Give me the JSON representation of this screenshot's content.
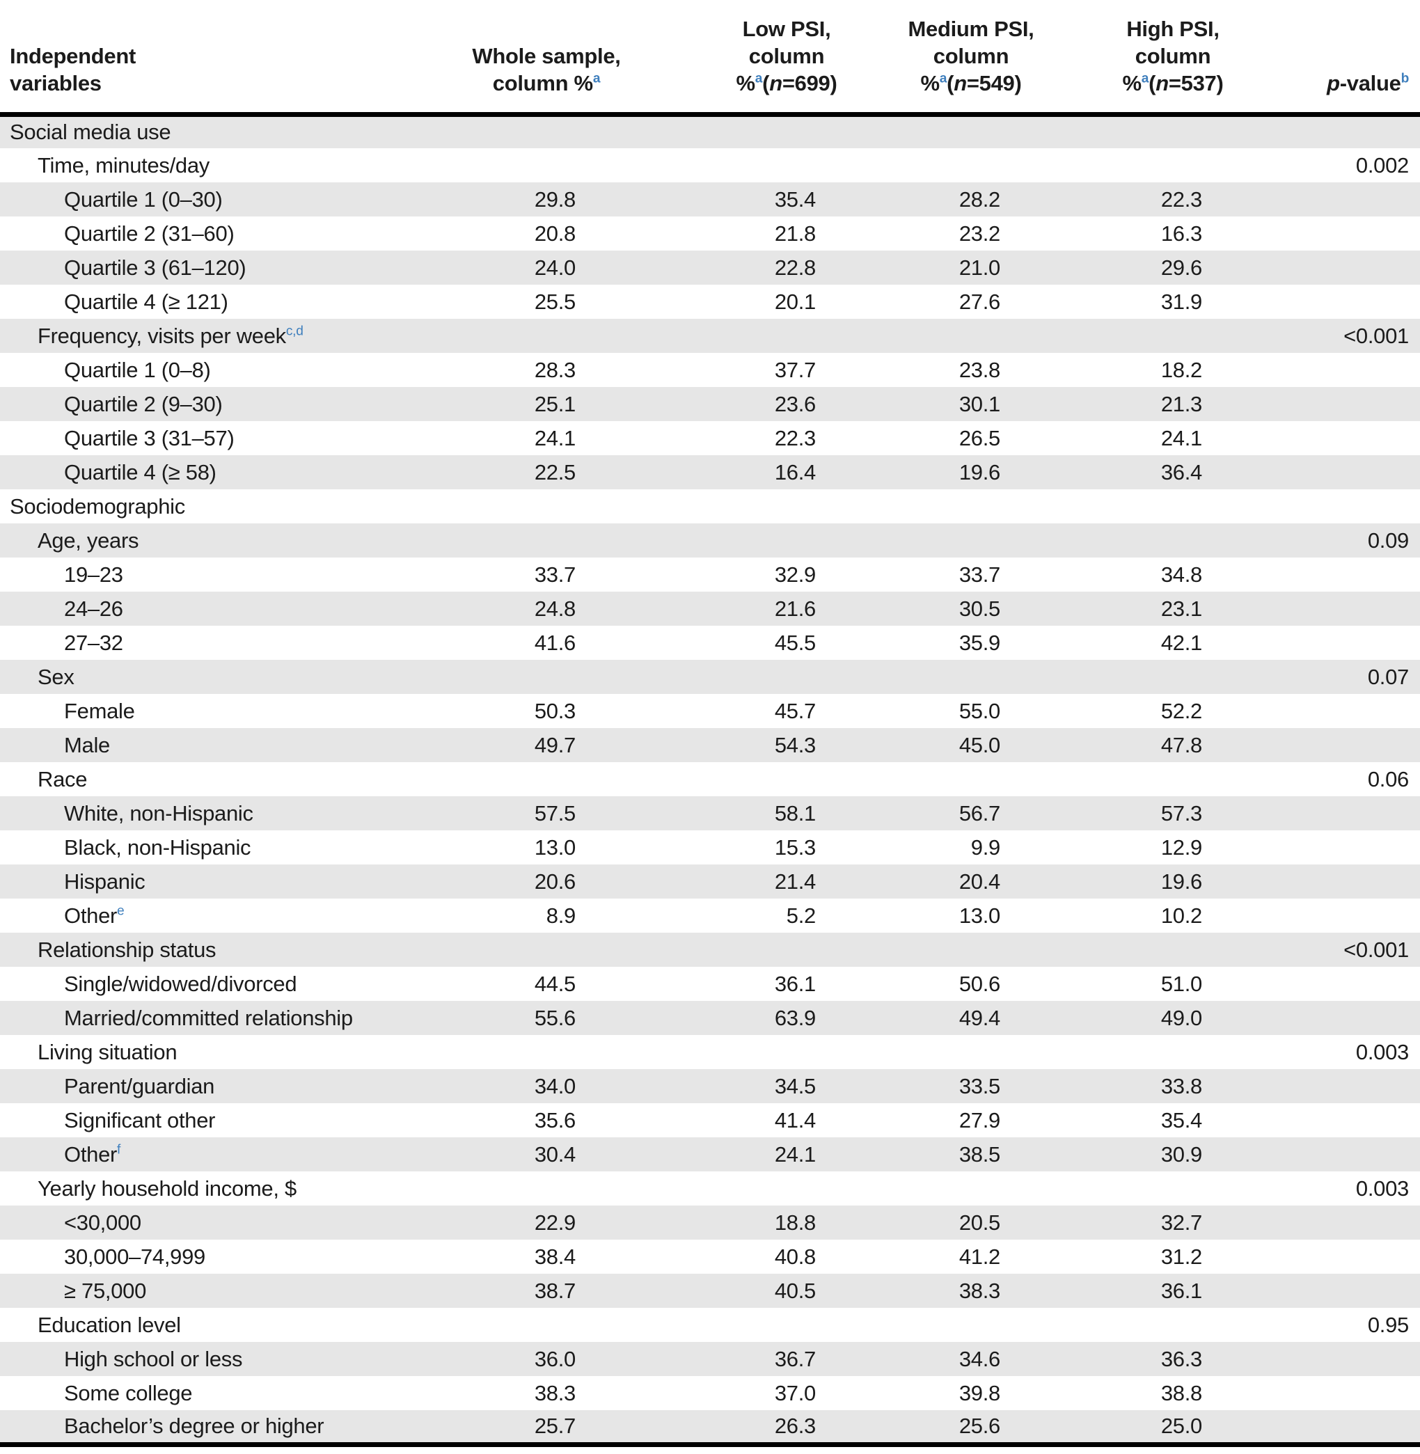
{
  "colors": {
    "superscript_blue": "#3f7fbd",
    "stripe_gray": "#e6e6e6",
    "rule_black": "#000000",
    "text": "#1b1b1b"
  },
  "chart_data": {
    "type": "table",
    "title": "Social media use and sociodemographic characteristics by PSI group (column percentages)"
  },
  "table": {
    "columns": [
      {
        "key": "label",
        "align": "left",
        "header_lines": [
          [
            {
              "t": "Independent"
            }
          ],
          [
            {
              "t": "variables"
            }
          ]
        ]
      },
      {
        "key": "whole",
        "align": "center",
        "header_lines": [
          [
            {
              "t": "Whole sample,"
            }
          ],
          [
            {
              "t": "column %"
            },
            {
              "t": "a",
              "sup": true
            }
          ]
        ]
      },
      {
        "key": "low",
        "align": "center",
        "header_lines": [
          [
            {
              "t": "Low PSI,"
            }
          ],
          [
            {
              "t": "column"
            }
          ],
          [
            {
              "t": "%"
            },
            {
              "t": "a",
              "sup": true
            },
            {
              "t": "("
            },
            {
              "t": "n",
              "i": true
            },
            {
              "t": "=699)"
            }
          ]
        ]
      },
      {
        "key": "medium",
        "align": "center",
        "header_lines": [
          [
            {
              "t": "Medium PSI,"
            }
          ],
          [
            {
              "t": "column"
            }
          ],
          [
            {
              "t": "%"
            },
            {
              "t": "a",
              "sup": true
            },
            {
              "t": "("
            },
            {
              "t": "n",
              "i": true
            },
            {
              "t": "=549)"
            }
          ]
        ]
      },
      {
        "key": "high",
        "align": "center",
        "header_lines": [
          [
            {
              "t": "High PSI,"
            }
          ],
          [
            {
              "t": "column"
            }
          ],
          [
            {
              "t": "%"
            },
            {
              "t": "a",
              "sup": true
            },
            {
              "t": "("
            },
            {
              "t": "n",
              "i": true
            },
            {
              "t": "=537)"
            }
          ]
        ]
      },
      {
        "key": "p",
        "align": "right",
        "header_lines": [
          [
            {
              "t": "p",
              "i": true
            },
            {
              "t": "-value"
            },
            {
              "t": "b",
              "sup": true
            }
          ]
        ]
      }
    ],
    "rows": [
      {
        "label": "Social media use",
        "sup": "",
        "indent": 0,
        "values": [
          "",
          "",
          "",
          ""
        ],
        "p": ""
      },
      {
        "label": "Time, minutes/day",
        "sup": "",
        "indent": 1,
        "values": [
          "",
          "",
          "",
          ""
        ],
        "p": "0.002"
      },
      {
        "label": "Quartile 1 (0–30)",
        "sup": "",
        "indent": 2,
        "values": [
          "29.8",
          "35.4",
          "28.2",
          "22.3"
        ],
        "p": ""
      },
      {
        "label": "Quartile 2 (31–60)",
        "sup": "",
        "indent": 2,
        "values": [
          "20.8",
          "21.8",
          "23.2",
          "16.3"
        ],
        "p": ""
      },
      {
        "label": "Quartile 3 (61–120)",
        "sup": "",
        "indent": 2,
        "values": [
          "24.0",
          "22.8",
          "21.0",
          "29.6"
        ],
        "p": ""
      },
      {
        "label": "Quartile 4 (≥ 121)",
        "sup": "",
        "indent": 2,
        "values": [
          "25.5",
          "20.1",
          "27.6",
          "31.9"
        ],
        "p": ""
      },
      {
        "label": "Frequency, visits per week",
        "sup": "c,d",
        "indent": 1,
        "values": [
          "",
          "",
          "",
          ""
        ],
        "p": "<0.001"
      },
      {
        "label": "Quartile 1 (0–8)",
        "sup": "",
        "indent": 2,
        "values": [
          "28.3",
          "37.7",
          "23.8",
          "18.2"
        ],
        "p": ""
      },
      {
        "label": "Quartile 2 (9–30)",
        "sup": "",
        "indent": 2,
        "values": [
          "25.1",
          "23.6",
          "30.1",
          "21.3"
        ],
        "p": ""
      },
      {
        "label": "Quartile 3 (31–57)",
        "sup": "",
        "indent": 2,
        "values": [
          "24.1",
          "22.3",
          "26.5",
          "24.1"
        ],
        "p": ""
      },
      {
        "label": "Quartile 4 (≥ 58)",
        "sup": "",
        "indent": 2,
        "values": [
          "22.5",
          "16.4",
          "19.6",
          "36.4"
        ],
        "p": ""
      },
      {
        "label": "Sociodemographic",
        "sup": "",
        "indent": 0,
        "values": [
          "",
          "",
          "",
          ""
        ],
        "p": ""
      },
      {
        "label": "Age, years",
        "sup": "",
        "indent": 1,
        "values": [
          "",
          "",
          "",
          ""
        ],
        "p": "0.09"
      },
      {
        "label": "19–23",
        "sup": "",
        "indent": 2,
        "values": [
          "33.7",
          "32.9",
          "33.7",
          "34.8"
        ],
        "p": ""
      },
      {
        "label": "24–26",
        "sup": "",
        "indent": 2,
        "values": [
          "24.8",
          "21.6",
          "30.5",
          "23.1"
        ],
        "p": ""
      },
      {
        "label": "27–32",
        "sup": "",
        "indent": 2,
        "values": [
          "41.6",
          "45.5",
          "35.9",
          "42.1"
        ],
        "p": ""
      },
      {
        "label": "Sex",
        "sup": "",
        "indent": 1,
        "values": [
          "",
          "",
          "",
          ""
        ],
        "p": "0.07"
      },
      {
        "label": "Female",
        "sup": "",
        "indent": 2,
        "values": [
          "50.3",
          "45.7",
          "55.0",
          "52.2"
        ],
        "p": ""
      },
      {
        "label": "Male",
        "sup": "",
        "indent": 2,
        "values": [
          "49.7",
          "54.3",
          "45.0",
          "47.8"
        ],
        "p": ""
      },
      {
        "label": "Race",
        "sup": "",
        "indent": 1,
        "values": [
          "",
          "",
          "",
          ""
        ],
        "p": "0.06"
      },
      {
        "label": "White, non-Hispanic",
        "sup": "",
        "indent": 2,
        "values": [
          "57.5",
          "58.1",
          "56.7",
          "57.3"
        ],
        "p": ""
      },
      {
        "label": "Black, non-Hispanic",
        "sup": "",
        "indent": 2,
        "values": [
          "13.0",
          "15.3",
          "9.9",
          "12.9"
        ],
        "p": ""
      },
      {
        "label": "Hispanic",
        "sup": "",
        "indent": 2,
        "values": [
          "20.6",
          "21.4",
          "20.4",
          "19.6"
        ],
        "p": ""
      },
      {
        "label": "Other",
        "sup": "e",
        "indent": 2,
        "values": [
          "8.9",
          "5.2",
          "13.0",
          "10.2"
        ],
        "p": ""
      },
      {
        "label": "Relationship status",
        "sup": "",
        "indent": 1,
        "values": [
          "",
          "",
          "",
          ""
        ],
        "p": "<0.001"
      },
      {
        "label": "Single/widowed/divorced",
        "sup": "",
        "indent": 2,
        "values": [
          "44.5",
          "36.1",
          "50.6",
          "51.0"
        ],
        "p": ""
      },
      {
        "label": "Married/committed relationship",
        "sup": "",
        "indent": 2,
        "values": [
          "55.6",
          "63.9",
          "49.4",
          "49.0"
        ],
        "p": ""
      },
      {
        "label": "Living situation",
        "sup": "",
        "indent": 1,
        "values": [
          "",
          "",
          "",
          ""
        ],
        "p": "0.003"
      },
      {
        "label": "Parent/guardian",
        "sup": "",
        "indent": 2,
        "values": [
          "34.0",
          "34.5",
          "33.5",
          "33.8"
        ],
        "p": ""
      },
      {
        "label": "Significant other",
        "sup": "",
        "indent": 2,
        "values": [
          "35.6",
          "41.4",
          "27.9",
          "35.4"
        ],
        "p": ""
      },
      {
        "label": "Other",
        "sup": "f",
        "indent": 2,
        "values": [
          "30.4",
          "24.1",
          "38.5",
          "30.9"
        ],
        "p": ""
      },
      {
        "label": "Yearly household income, $",
        "sup": "",
        "indent": 1,
        "values": [
          "",
          "",
          "",
          ""
        ],
        "p": "0.003"
      },
      {
        "label": "<30,000",
        "sup": "",
        "indent": 2,
        "values": [
          "22.9",
          "18.8",
          "20.5",
          "32.7"
        ],
        "p": ""
      },
      {
        "label": "30,000–74,999",
        "sup": "",
        "indent": 2,
        "values": [
          "38.4",
          "40.8",
          "41.2",
          "31.2"
        ],
        "p": ""
      },
      {
        "label": "≥ 75,000",
        "sup": "",
        "indent": 2,
        "values": [
          "38.7",
          "40.5",
          "38.3",
          "36.1"
        ],
        "p": ""
      },
      {
        "label": "Education level",
        "sup": "",
        "indent": 1,
        "values": [
          "",
          "",
          "",
          ""
        ],
        "p": "0.95"
      },
      {
        "label": "High school or less",
        "sup": "",
        "indent": 2,
        "values": [
          "36.0",
          "36.7",
          "34.6",
          "36.3"
        ],
        "p": ""
      },
      {
        "label": "Some college",
        "sup": "",
        "indent": 2,
        "values": [
          "38.3",
          "37.0",
          "39.8",
          "38.8"
        ],
        "p": ""
      },
      {
        "label": "Bachelor’s degree or higher",
        "sup": "",
        "indent": 2,
        "values": [
          "25.7",
          "26.3",
          "25.6",
          "25.0"
        ],
        "p": ""
      }
    ]
  }
}
